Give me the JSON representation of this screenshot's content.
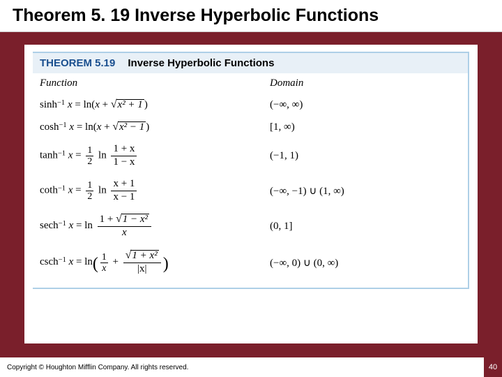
{
  "slide_title": "Theorem 5. 19 Inverse Hyperbolic Functions",
  "theorem": {
    "number_label": "THEOREM 5.19",
    "title": "Inverse Hyperbolic Functions",
    "headers": {
      "function": "Function",
      "domain": "Domain"
    },
    "rows": {
      "sinh": {
        "name": "sinh",
        "sup": "−1",
        "radicand": "x² + 1",
        "domain": "(−∞, ∞)"
      },
      "cosh": {
        "name": "cosh",
        "sup": "−1",
        "radicand": "x² − 1",
        "domain": "[1, ∞)"
      },
      "tanh": {
        "name": "tanh",
        "sup": "−1",
        "half_num": "1",
        "half_den": "2",
        "num": "1 + x",
        "den": "1 − x",
        "domain": "(−1, 1)"
      },
      "coth": {
        "name": "coth",
        "sup": "−1",
        "half_num": "1",
        "half_den": "2",
        "num": "x + 1",
        "den": "x − 1",
        "domain": "(−∞, −1) ∪ (1, ∞)"
      },
      "sech": {
        "name": "sech",
        "sup": "−1",
        "radicand": "1 − x²",
        "num_prefix": "1 + ",
        "den": "x",
        "domain": "(0, 1]"
      },
      "csch": {
        "name": "csch",
        "sup": "−1",
        "t1_num": "1",
        "t1_den": "x",
        "radicand": "1 + x²",
        "abs_den": "|x|",
        "domain": "(−∞, 0) ∪ (0, ∞)"
      }
    }
  },
  "footer": {
    "copyright": "Copyright © Houghton Mifflin Company. All rights reserved.",
    "page": "40"
  },
  "colors": {
    "background": "#7a1f2b",
    "panel": "#ffffff",
    "box_border": "#aecfe7",
    "header_bg": "#e8f0f7",
    "accent_text": "#1a4f8f"
  }
}
